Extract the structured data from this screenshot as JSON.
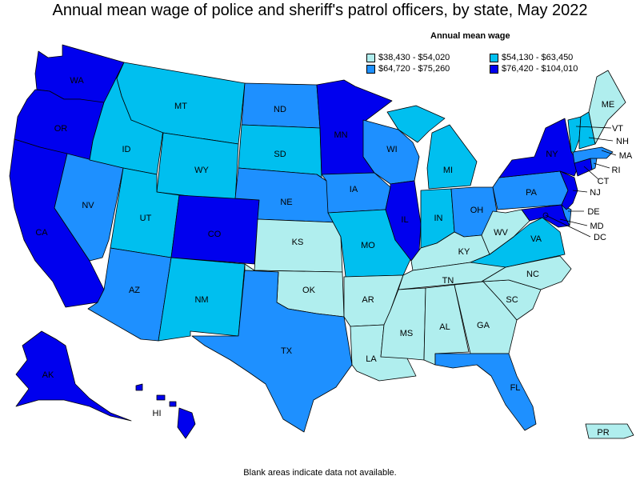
{
  "title": "Annual mean wage of police and sheriff's patrol officers, by state, May 2022",
  "legend": {
    "title": "Annual mean wage",
    "items": [
      {
        "label": "$38,430 - $54,020",
        "color": "#b0eeee"
      },
      {
        "label": "$54,130 - $63,450",
        "color": "#00bfef"
      },
      {
        "label": "$64,720 - $75,260",
        "color": "#1e90ff"
      },
      {
        "label": "$76,420 - $104,010",
        "color": "#0000ee"
      }
    ]
  },
  "footer": "Blank areas indicate data not available.",
  "states": {
    "WA": {
      "label": "WA",
      "tier": 3
    },
    "OR": {
      "label": "OR",
      "tier": 3
    },
    "CA": {
      "label": "CA",
      "tier": 3
    },
    "NV": {
      "label": "NV",
      "tier": 2
    },
    "ID": {
      "label": "ID",
      "tier": 1
    },
    "MT": {
      "label": "MT",
      "tier": 1
    },
    "WY": {
      "label": "WY",
      "tier": 1
    },
    "UT": {
      "label": "UT",
      "tier": 1
    },
    "AZ": {
      "label": "AZ",
      "tier": 2
    },
    "CO": {
      "label": "CO",
      "tier": 3
    },
    "NM": {
      "label": "NM",
      "tier": 1
    },
    "ND": {
      "label": "ND",
      "tier": 2
    },
    "SD": {
      "label": "SD",
      "tier": 1
    },
    "NE": {
      "label": "NE",
      "tier": 2
    },
    "KS": {
      "label": "KS",
      "tier": 0
    },
    "OK": {
      "label": "OK",
      "tier": 0
    },
    "TX": {
      "label": "TX",
      "tier": 2
    },
    "MN": {
      "label": "MN",
      "tier": 3
    },
    "IA": {
      "label": "IA",
      "tier": 2
    },
    "MO": {
      "label": "MO",
      "tier": 1
    },
    "AR": {
      "label": "AR",
      "tier": 0
    },
    "LA": {
      "label": "LA",
      "tier": 0
    },
    "WI": {
      "label": "WI",
      "tier": 2
    },
    "IL": {
      "label": "IL",
      "tier": 3
    },
    "MI": {
      "label": "MI",
      "tier": 1
    },
    "IN": {
      "label": "IN",
      "tier": 1
    },
    "OH": {
      "label": "OH",
      "tier": 2
    },
    "KY": {
      "label": "KY",
      "tier": 0
    },
    "TN": {
      "label": "TN",
      "tier": 0
    },
    "MS": {
      "label": "MS",
      "tier": 0
    },
    "AL": {
      "label": "AL",
      "tier": 0
    },
    "GA": {
      "label": "GA",
      "tier": 0
    },
    "FL": {
      "label": "FL",
      "tier": 2
    },
    "SC": {
      "label": "SC",
      "tier": 0
    },
    "NC": {
      "label": "NC",
      "tier": 0
    },
    "VA": {
      "label": "VA",
      "tier": 1
    },
    "WV": {
      "label": "WV",
      "tier": 0
    },
    "PA": {
      "label": "PA",
      "tier": 2
    },
    "NY": {
      "label": "NY",
      "tier": 3
    },
    "VT": {
      "label": "VT",
      "tier": 1
    },
    "NH": {
      "label": "NH",
      "tier": 1
    },
    "ME": {
      "label": "ME",
      "tier": 0
    },
    "MA": {
      "label": "MA",
      "tier": 2
    },
    "RI": {
      "label": "RI",
      "tier": 2
    },
    "CT": {
      "label": "CT",
      "tier": 3
    },
    "NJ": {
      "label": "NJ",
      "tier": 3
    },
    "DE": {
      "label": "DE",
      "tier": 2
    },
    "MD": {
      "label": "MD",
      "tier": 3
    },
    "DC": {
      "label": "DC",
      "tier": 3
    },
    "AK": {
      "label": "AK",
      "tier": 3
    },
    "HI": {
      "label": "HI",
      "tier": 3
    },
    "PR": {
      "label": "PR",
      "tier": 0
    }
  }
}
